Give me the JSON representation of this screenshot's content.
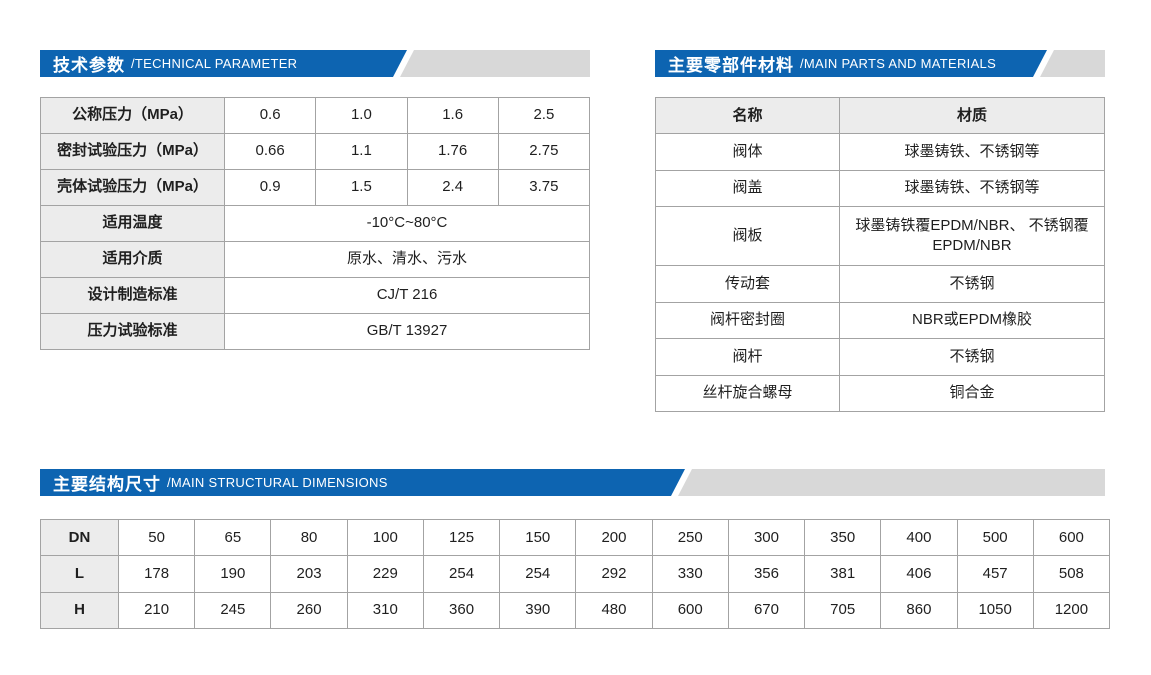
{
  "colors": {
    "accent_blue": "#0d64b1",
    "banner_gray": "#d8d8d8",
    "label_cell_gray": "#ececec",
    "table_border": "#a3a3a3"
  },
  "sections": {
    "technical": {
      "title_zh": "技术参数",
      "title_en": "/TECHNICAL PARAMETER",
      "table": {
        "pressure_rows": [
          {
            "label": "公称压力（MPa）",
            "values": [
              "0.6",
              "1.0",
              "1.6",
              "2.5"
            ]
          },
          {
            "label": "密封试验压力（MPa）",
            "values": [
              "0.66",
              "1.1",
              "1.76",
              "2.75"
            ]
          },
          {
            "label": "壳体试验压力（MPa）",
            "values": [
              "0.9",
              "1.5",
              "2.4",
              "3.75"
            ]
          }
        ],
        "info_rows": [
          {
            "label": "适用温度",
            "value": "-10°C~80°C"
          },
          {
            "label": "适用介质",
            "value": "原水、清水、污水"
          },
          {
            "label": "设计制造标准",
            "value": "CJ/T 216"
          },
          {
            "label": "压力试验标准",
            "value": "GB/T 13927"
          }
        ]
      }
    },
    "materials": {
      "title_zh": "主要零部件材料",
      "title_en": "/MAIN PARTS AND MATERIALS",
      "table": {
        "headers": [
          "名称",
          "材质"
        ],
        "rows": [
          {
            "name": "阀体",
            "material": "球墨铸铁、不锈钢等"
          },
          {
            "name": "阀盖",
            "material": "球墨铸铁、不锈钢等"
          },
          {
            "name": "阀板",
            "material": "球墨铸铁覆EPDM/NBR、 不锈钢覆EPDM/NBR"
          },
          {
            "name": "传动套",
            "material": "不锈钢"
          },
          {
            "name": "阀杆密封圈",
            "material": "NBR或EPDM橡胶"
          },
          {
            "name": "阀杆",
            "material": "不锈钢"
          },
          {
            "name": "丝杆旋合螺母",
            "material": "铜合金"
          }
        ]
      }
    },
    "dimensions": {
      "title_zh": "主要结构尺寸",
      "title_en": "/MAIN STRUCTURAL DIMENSIONS",
      "table": {
        "rows": [
          {
            "label": "DN",
            "values": [
              "50",
              "65",
              "80",
              "100",
              "125",
              "150",
              "200",
              "250",
              "300",
              "350",
              "400",
              "500",
              "600"
            ]
          },
          {
            "label": "L",
            "values": [
              "178",
              "190",
              "203",
              "229",
              "254",
              "254",
              "292",
              "330",
              "356",
              "381",
              "406",
              "457",
              "508"
            ]
          },
          {
            "label": "H",
            "values": [
              "210",
              "245",
              "260",
              "310",
              "360",
              "390",
              "480",
              "600",
              "670",
              "705",
              "860",
              "1050",
              "1200"
            ]
          }
        ]
      }
    }
  }
}
